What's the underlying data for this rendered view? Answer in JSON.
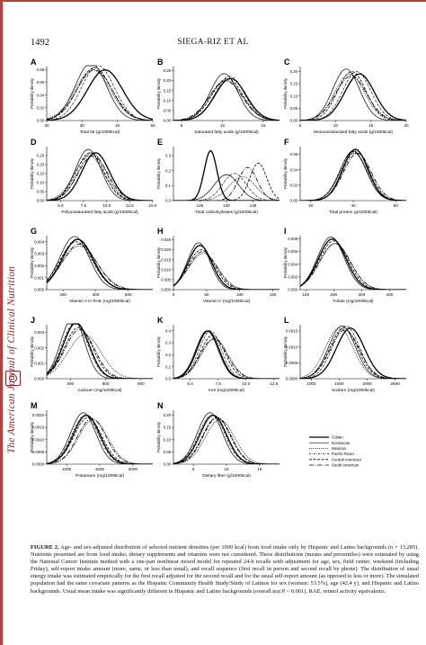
{
  "page": {
    "page_number": "1492",
    "running_head": "SIEGA-RIZ ET AL",
    "journal_side": "The American Journal of Clinical Nutrition"
  },
  "chart_data": [
    {
      "panel": "A",
      "type": "line",
      "xlabel": "Total fat (g/1000kcal)",
      "ylabel": "Probability density",
      "xticks": [
        "20",
        "30",
        "40",
        "50"
      ],
      "xlim": [
        20,
        50
      ],
      "yticks": [
        "0.00",
        "0.02",
        "0.04",
        "0.06",
        "0.08"
      ],
      "ylim": [
        0,
        0.085
      ],
      "series": [
        {
          "name": "Cuban",
          "mean": 36.5,
          "sd": 5.0
        },
        {
          "name": "Dominican",
          "mean": 32.5,
          "sd": 4.4
        },
        {
          "name": "Mexican",
          "mean": 33.0,
          "sd": 5.0
        },
        {
          "name": "Puerto Rican",
          "mean": 34.5,
          "sd": 4.6
        },
        {
          "name": "Central American",
          "mean": 33.5,
          "sd": 4.8
        },
        {
          "name": "South American",
          "mean": 33.5,
          "sd": 5.0
        }
      ]
    },
    {
      "panel": "B",
      "type": "line",
      "xlabel": "Saturated fatty acids (g/1000kcal)",
      "ylabel": "Probability density",
      "xticks": [
        "5",
        "10",
        "15"
      ],
      "xlim": [
        4,
        17
      ],
      "yticks": [
        "0.00",
        "0.05",
        "0.10",
        "0.15",
        "0.20",
        "0.25"
      ],
      "ylim": [
        0,
        0.27
      ],
      "series": [
        {
          "name": "Cuban",
          "mean": 11.0,
          "sd": 1.9
        },
        {
          "name": "Dominican",
          "mean": 10.2,
          "sd": 1.7
        },
        {
          "name": "Mexican",
          "mean": 10.5,
          "sd": 2.0
        },
        {
          "name": "Puerto Rican",
          "mean": 10.9,
          "sd": 1.8
        },
        {
          "name": "Central American",
          "mean": 10.6,
          "sd": 1.9
        },
        {
          "name": "South American",
          "mean": 10.4,
          "sd": 2.0
        }
      ]
    },
    {
      "panel": "C",
      "type": "line",
      "xlabel": "Monounsaturated fatty acids (g/1000kcal)",
      "ylabel": "Probability density",
      "xticks": [
        "5",
        "10",
        "15",
        "20"
      ],
      "xlim": [
        5,
        20
      ],
      "yticks": [
        "0.00",
        "0.05",
        "0.10",
        "0.15",
        "0.20"
      ],
      "ylim": [
        0,
        0.22
      ],
      "series": [
        {
          "name": "Cuban",
          "mean": 13.4,
          "sd": 2.1
        },
        {
          "name": "Dominican",
          "mean": 11.5,
          "sd": 1.9
        },
        {
          "name": "Mexican",
          "mean": 12.0,
          "sd": 2.1
        },
        {
          "name": "Puerto Rican",
          "mean": 13.0,
          "sd": 2.0
        },
        {
          "name": "Central American",
          "mean": 12.3,
          "sd": 2.0
        },
        {
          "name": "South American",
          "mean": 12.2,
          "sd": 2.2
        }
      ]
    },
    {
      "panel": "D",
      "type": "line",
      "xlabel": "Polyunsaturated fatty acids (g/1000kcal)",
      "ylabel": "Probability density",
      "xticks": [
        "5.0",
        "7.5",
        "10.0",
        "12.5",
        "15.0"
      ],
      "xlim": [
        3.5,
        15
      ],
      "yticks": [
        "0.00",
        "0.05",
        "0.10",
        "0.15",
        "0.20",
        "0.25"
      ],
      "ylim": [
        0,
        0.3
      ],
      "series": [
        {
          "name": "Cuban",
          "mean": 8.8,
          "sd": 1.5
        },
        {
          "name": "Dominican",
          "mean": 8.0,
          "sd": 1.4
        },
        {
          "name": "Mexican",
          "mean": 8.1,
          "sd": 1.6
        },
        {
          "name": "Puerto Rican",
          "mean": 8.4,
          "sd": 1.5
        },
        {
          "name": "Central American",
          "mean": 8.2,
          "sd": 1.5
        },
        {
          "name": "South American",
          "mean": 8.5,
          "sd": 1.6
        }
      ]
    },
    {
      "panel": "E",
      "type": "line",
      "xlabel": "Total carbohydrates (g/1000kcal)",
      "ylabel": "Probability density",
      "xticks": [
        "125",
        "130",
        "135"
      ],
      "xlim": [
        120,
        140
      ],
      "yticks": [
        "0.0",
        "0.1",
        "0.2",
        "0.3"
      ],
      "ylim": [
        0,
        0.36
      ],
      "series": [
        {
          "name": "Cuban",
          "mean": 127.0,
          "sd": 1.2
        },
        {
          "name": "Dominican",
          "mean": 130.0,
          "sd": 2.3
        },
        {
          "name": "Mexican",
          "mean": 133.0,
          "sd": 2.5
        },
        {
          "name": "Puerto Rican",
          "mean": 131.5,
          "sd": 2.2
        },
        {
          "name": "Central American",
          "mean": 136.0,
          "sd": 1.6
        },
        {
          "name": "South American",
          "mean": 134.0,
          "sd": 1.8
        }
      ]
    },
    {
      "panel": "F",
      "type": "line",
      "xlabel": "Total protein (g/1000kcal)",
      "ylabel": "Probability density",
      "xticks": [
        "20",
        "40",
        "60"
      ],
      "xlim": [
        15,
        65
      ],
      "yticks": [
        "0.00",
        "0.02",
        "0.04",
        "0.06"
      ],
      "ylim": [
        0,
        0.07
      ],
      "series": [
        {
          "name": "Cuban",
          "mean": 41.0,
          "sd": 6.0
        },
        {
          "name": "Dominican",
          "mean": 40.0,
          "sd": 6.2
        },
        {
          "name": "Mexican",
          "mean": 40.5,
          "sd": 6.5
        },
        {
          "name": "Puerto Rican",
          "mean": 41.5,
          "sd": 6.2
        },
        {
          "name": "Central American",
          "mean": 40.0,
          "sd": 6.3
        },
        {
          "name": "South American",
          "mean": 42.0,
          "sd": 6.5
        }
      ]
    },
    {
      "panel": "G",
      "type": "line",
      "xlabel": "Vitamin A in RAE (mg/1000kcal)",
      "ylabel": "Probability density",
      "xticks": [
        "200",
        "400",
        "600"
      ],
      "xlim": [
        100,
        750
      ],
      "yticks": [
        "0.000",
        "0.001",
        "0.002",
        "0.003",
        "0.004"
      ],
      "ylim": [
        0,
        0.0045
      ],
      "series": [
        {
          "name": "Cuban",
          "mean": 290,
          "sd": 95
        },
        {
          "name": "Dominican",
          "mean": 270,
          "sd": 90
        },
        {
          "name": "Mexican",
          "mean": 300,
          "sd": 110
        },
        {
          "name": "Puerto Rican",
          "mean": 285,
          "sd": 95
        },
        {
          "name": "Central American",
          "mean": 280,
          "sd": 100
        },
        {
          "name": "South American",
          "mean": 300,
          "sd": 105
        }
      ]
    },
    {
      "panel": "H",
      "type": "line",
      "xlabel": "Vitamin C (mg/1000kcal)",
      "ylabel": "Probability density",
      "xticks": [
        "0",
        "50",
        "100",
        "150"
      ],
      "xlim": [
        0,
        160
      ],
      "yticks": [
        "0.000",
        "0.005",
        "0.010",
        "0.015",
        "0.020",
        "0.025"
      ],
      "ylim": [
        0,
        0.027
      ],
      "series": [
        {
          "name": "Cuban",
          "mean": 40,
          "sd": 18
        },
        {
          "name": "Dominican",
          "mean": 38,
          "sd": 17
        },
        {
          "name": "Mexican",
          "mean": 45,
          "sd": 22
        },
        {
          "name": "Puerto Rican",
          "mean": 40,
          "sd": 18
        },
        {
          "name": "Central American",
          "mean": 42,
          "sd": 20
        },
        {
          "name": "South American",
          "mean": 44,
          "sd": 21
        }
      ]
    },
    {
      "panel": "I",
      "type": "line",
      "xlabel": "Folate (mg/1000kcal)",
      "ylabel": "Probability density",
      "xticks": [
        "100",
        "200",
        "300",
        "400"
      ],
      "xlim": [
        80,
        460
      ],
      "yticks": [
        "0.000",
        "0.002",
        "0.004",
        "0.006",
        "0.008"
      ],
      "ylim": [
        0,
        0.0085
      ],
      "series": [
        {
          "name": "Cuban",
          "mean": 195,
          "sd": 50
        },
        {
          "name": "Dominican",
          "mean": 190,
          "sd": 48
        },
        {
          "name": "Mexican",
          "mean": 205,
          "sd": 55
        },
        {
          "name": "Puerto Rican",
          "mean": 195,
          "sd": 50
        },
        {
          "name": "Central American",
          "mean": 200,
          "sd": 52
        },
        {
          "name": "South American",
          "mean": 205,
          "sd": 55
        }
      ]
    },
    {
      "panel": "J",
      "type": "line",
      "xlabel": "Calcium (mg/1000kcal)",
      "ylabel": "Probability density",
      "xticks": [
        "300",
        "600",
        "900"
      ],
      "xlim": [
        100,
        1000
      ],
      "yticks": [
        "0.000",
        "0.001",
        "0.002",
        "0.003"
      ],
      "ylim": [
        0,
        0.0035
      ],
      "series": [
        {
          "name": "Cuban",
          "mean": 350,
          "sd": 110
        },
        {
          "name": "Dominican",
          "mean": 320,
          "sd": 100
        },
        {
          "name": "Mexican",
          "mean": 420,
          "sd": 140
        },
        {
          "name": "Puerto Rican",
          "mean": 340,
          "sd": 110
        },
        {
          "name": "Central American",
          "mean": 370,
          "sd": 120
        },
        {
          "name": "South American",
          "mean": 380,
          "sd": 125
        }
      ]
    },
    {
      "panel": "K",
      "type": "line",
      "xlabel": "Iron (mg/1000kcal)",
      "ylabel": "Probability density",
      "xticks": [
        "5.0",
        "7.5",
        "10.0",
        "12.5"
      ],
      "xlim": [
        3.5,
        13
      ],
      "yticks": [
        "0.0",
        "0.1",
        "0.2",
        "0.3",
        "0.4"
      ],
      "ylim": [
        0,
        0.45
      ],
      "series": [
        {
          "name": "Cuban",
          "mean": 6.6,
          "sd": 1.0
        },
        {
          "name": "Dominican",
          "mean": 6.5,
          "sd": 1.0
        },
        {
          "name": "Mexican",
          "mean": 7.2,
          "sd": 1.2
        },
        {
          "name": "Puerto Rican",
          "mean": 6.8,
          "sd": 1.0
        },
        {
          "name": "Central American",
          "mean": 7.0,
          "sd": 1.1
        },
        {
          "name": "South American",
          "mean": 7.1,
          "sd": 1.2
        }
      ]
    },
    {
      "panel": "L",
      "type": "line",
      "xlabel": "Sodium (mg/1000kcal)",
      "ylabel": "Probability density",
      "xticks": [
        "1000",
        "1500",
        "2000",
        "2500"
      ],
      "xlim": [
        800,
        2700
      ],
      "yticks": [
        "0.0000",
        "0.0005",
        "0.0010",
        "0.0015"
      ],
      "ylim": [
        0,
        0.0017
      ],
      "series": [
        {
          "name": "Cuban",
          "mean": 1700,
          "sd": 250
        },
        {
          "name": "Dominican",
          "mean": 1550,
          "sd": 240
        },
        {
          "name": "Mexican",
          "mean": 1500,
          "sd": 250
        },
        {
          "name": "Puerto Rican",
          "mean": 1620,
          "sd": 240
        },
        {
          "name": "Central American",
          "mean": 1580,
          "sd": 250
        },
        {
          "name": "South American",
          "mean": 1600,
          "sd": 260
        }
      ]
    },
    {
      "panel": "M",
      "type": "line",
      "xlabel": "Potassium (mg/1000kcal)",
      "ylabel": "Probability density",
      "xticks": [
        "1000",
        "1500",
        "2000"
      ],
      "xlim": [
        700,
        2300
      ],
      "yticks": [
        "0.0000",
        "0.0005",
        "0.0010",
        "0.0015",
        "0.0020"
      ],
      "ylim": [
        0,
        0.0022
      ],
      "series": [
        {
          "name": "Cuban",
          "mean": 1300,
          "sd": 200
        },
        {
          "name": "Dominican",
          "mean": 1250,
          "sd": 190
        },
        {
          "name": "Mexican",
          "mean": 1400,
          "sd": 220
        },
        {
          "name": "Puerto Rican",
          "mean": 1280,
          "sd": 200
        },
        {
          "name": "Central American",
          "mean": 1320,
          "sd": 210
        },
        {
          "name": "South American",
          "mean": 1380,
          "sd": 215
        }
      ]
    },
    {
      "panel": "N",
      "type": "line",
      "xlabel": "Dietary fiber (g/1000kcal)",
      "ylabel": "Probability density",
      "xticks": [
        "5",
        "10",
        "15"
      ],
      "xlim": [
        2,
        18
      ],
      "yticks": [
        "0.00",
        "0.05",
        "0.10",
        "0.15",
        "0.20"
      ],
      "ylim": [
        0,
        0.22
      ],
      "series": [
        {
          "name": "Cuban",
          "mean": 8.0,
          "sd": 2.0
        },
        {
          "name": "Dominican",
          "mean": 7.5,
          "sd": 1.9
        },
        {
          "name": "Mexican",
          "mean": 9.0,
          "sd": 2.2
        },
        {
          "name": "Puerto Rican",
          "mean": 7.8,
          "sd": 2.0
        },
        {
          "name": "Central American",
          "mean": 8.5,
          "sd": 2.1
        },
        {
          "name": "South American",
          "mean": 8.6,
          "sd": 2.1
        }
      ]
    }
  ],
  "legend": {
    "entries": [
      {
        "name": "Cuban",
        "dash": "",
        "width": 1.3
      },
      {
        "name": "Dominican",
        "dash": "",
        "width": 0.7
      },
      {
        "name": "Mexican",
        "dash": "1,1.2",
        "width": 0.8
      },
      {
        "name": "Puerto Rican",
        "dash": "2,1.2,0.6,1.2",
        "width": 0.8
      },
      {
        "name": "Central American",
        "dash": "3,1.5",
        "width": 0.8
      },
      {
        "name": "South American",
        "dash": "5,1.5,1,1.5",
        "width": 0.8
      }
    ]
  },
  "caption": {
    "label": "FIGURE 2.",
    "text": "Age- and sex-adjusted distribution of selected nutrient densities (per 1000 kcal) from food intake only by Hispanic and Latino backgrounds (n = 13,285). Nutrients presented are from food intake; dietary supplements and vitamins were not considered. These distributions (means and percentiles) were estimated by using the National Cancer Institute method with a one-part nonlinear mixed model for repeated 24-h recalls with adjustment for age, sex, field center, weekend (including Friday), self-report intake amount (more, same, or less than usual), and recall sequence (first recall in person and second recall by phone). The distribution of usual energy intake was estimated empirically for the first recall adjusted for the second recall and for the usual self-report amount (as opposed to less or more). The simulated population had the same covariate patterns as the Hispanic Community Health Study/Study of Latinos for sex (women: 53.5%), age (42.4 y), and Hispanic and Latino backgrounds. Usual mean intake was significantly different in Hispanic and Latino backgrounds (overall test P < 0.001). RAE, retinol activity equivalents."
  }
}
